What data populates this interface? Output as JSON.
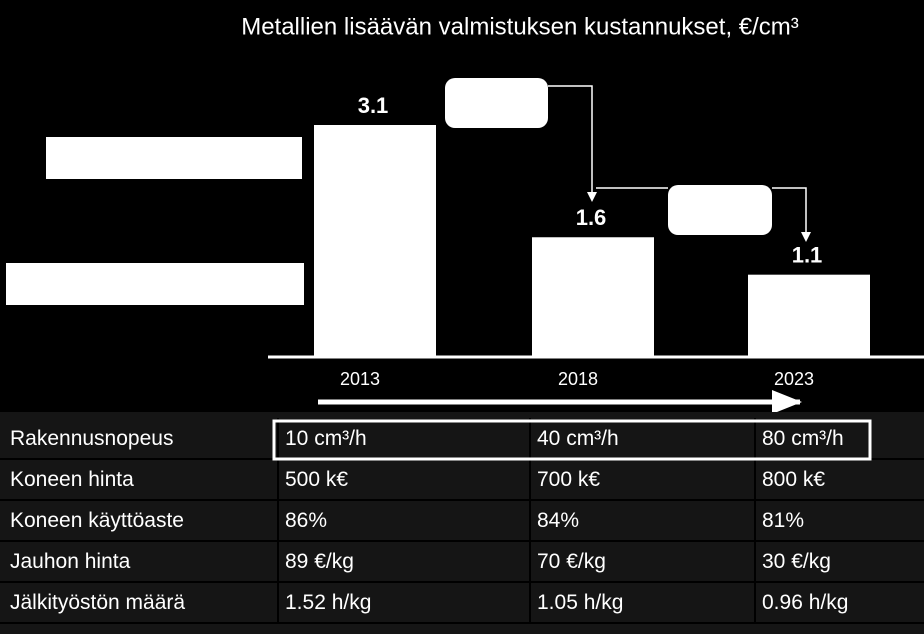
{
  "chart_data": {
    "type": "bar",
    "title": "Metallien lisäävän valmistuksen kustannukset, €/cm³",
    "categories": [
      "2013",
      "2018",
      "2023"
    ],
    "values": [
      3.1,
      1.6,
      1.1
    ],
    "color": "#ffffff"
  },
  "table": {
    "rows": [
      [
        "Rakennusnopeus",
        "10 cm³/h",
        "40 cm³/h",
        "80 cm³/h"
      ],
      [
        "Koneen hinta",
        "500 k€",
        "700 k€",
        "800 k€"
      ],
      [
        "Koneen käyttöaste",
        "86%",
        "84%",
        "81%"
      ],
      [
        "Jauhon hinta",
        "89 €/kg",
        "70 €/kg",
        "30 €/kg"
      ],
      [
        "Jälkityöstön määrä",
        "1.52 h/kg",
        "1.05 h/kg",
        "0.96 h/kg"
      ]
    ]
  }
}
